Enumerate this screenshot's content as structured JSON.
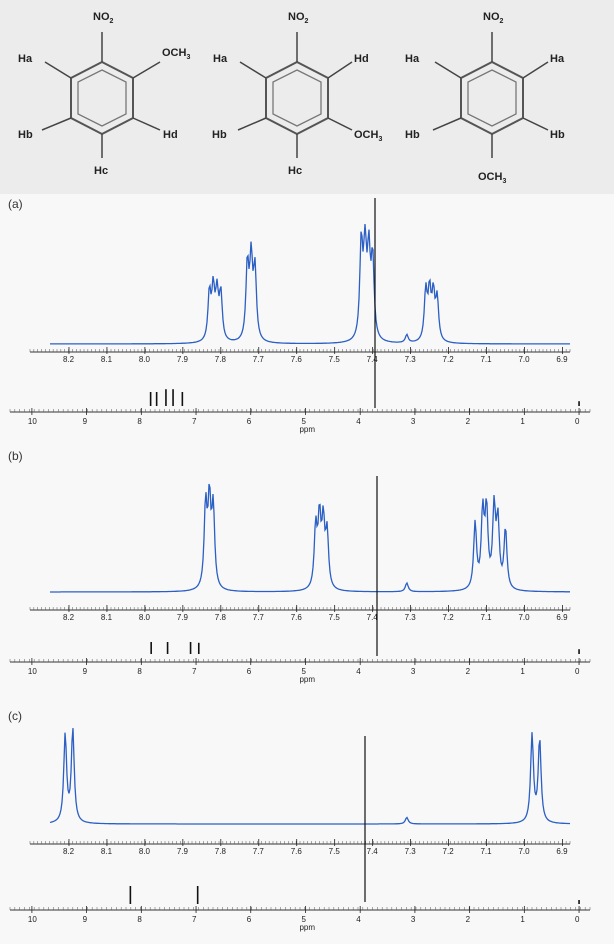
{
  "structures": [
    {
      "top": "NO",
      "top_sub": "2",
      "left_up": "Ha",
      "right_up": "OCH",
      "right_up_sub": "3",
      "left_down": "Hb",
      "right_down": "Hd",
      "bottom": "Hc",
      "bottom_sub": ""
    },
    {
      "top": "NO",
      "top_sub": "2",
      "left_up": "Ha",
      "right_up": "Hd",
      "right_up_sub": "",
      "left_down": "Hb",
      "right_down": "OCH",
      "right_down_sub": "3",
      "bottom": "Hc",
      "bottom_sub": ""
    },
    {
      "top": "NO",
      "top_sub": "2",
      "left_up": "Ha",
      "right_up": "Ha",
      "right_up_sub": "",
      "left_down": "Hb",
      "right_down": "Hb",
      "bottom": "OCH",
      "bottom_sub": "3"
    }
  ],
  "chart_data": [
    {
      "panel": "(a)",
      "type": "line",
      "zoom_axis": {
        "range": [
          8.25,
          6.88
        ],
        "ticks": [
          "8.2",
          "8.1",
          "8.0",
          "7.9",
          "7.8",
          "7.7",
          "7.6",
          "7.5",
          "7.4",
          "7.3",
          "7.2",
          "7.1",
          "7.0",
          "6.9"
        ]
      },
      "zoom_peaks": [
        {
          "ppm": 7.83,
          "height": 0.48
        },
        {
          "ppm": 7.82,
          "height": 0.5
        },
        {
          "ppm": 7.81,
          "height": 0.46
        },
        {
          "ppm": 7.8,
          "height": 0.47
        },
        {
          "ppm": 7.73,
          "height": 0.75
        },
        {
          "ppm": 7.72,
          "height": 0.78
        },
        {
          "ppm": 7.71,
          "height": 0.7
        },
        {
          "ppm": 7.43,
          "height": 0.95
        },
        {
          "ppm": 7.42,
          "height": 0.9
        },
        {
          "ppm": 7.41,
          "height": 0.82
        },
        {
          "ppm": 7.4,
          "height": 0.8
        },
        {
          "ppm": 7.26,
          "height": 0.5
        },
        {
          "ppm": 7.25,
          "height": 0.48
        },
        {
          "ppm": 7.24,
          "height": 0.45
        },
        {
          "ppm": 7.23,
          "height": 0.42
        },
        {
          "ppm": 7.31,
          "height": 0.08
        }
      ],
      "full_axis": {
        "range": [
          10.4,
          -0.2
        ],
        "ticks": [
          "10",
          "9",
          "8",
          "7",
          "6",
          "5",
          "4",
          "3",
          "2",
          "1",
          "0"
        ],
        "xlabel": "ppm"
      },
      "full_peaks": [
        {
          "ppm": 7.83,
          "height": 0.35
        },
        {
          "ppm": 7.72,
          "height": 0.35
        },
        {
          "ppm": 7.55,
          "height": 0.42
        },
        {
          "ppm": 7.42,
          "height": 0.42
        },
        {
          "ppm": 7.25,
          "height": 0.35
        },
        {
          "ppm": 3.9,
          "height": 1.0
        },
        {
          "ppm": 0.0,
          "height": 0.12
        }
      ]
    },
    {
      "panel": "(b)",
      "type": "line",
      "zoom_axis": {
        "range": [
          8.25,
          6.88
        ],
        "ticks": [
          "8.2",
          "8.1",
          "8.0",
          "7.9",
          "7.8",
          "7.7",
          "7.6",
          "7.5",
          "7.4",
          "7.3",
          "7.2",
          "7.1",
          "7.0",
          "6.9"
        ]
      },
      "zoom_peaks": [
        {
          "ppm": 7.84,
          "height": 0.75
        },
        {
          "ppm": 7.83,
          "height": 0.77
        },
        {
          "ppm": 7.82,
          "height": 0.72
        },
        {
          "ppm": 7.55,
          "height": 0.55
        },
        {
          "ppm": 7.54,
          "height": 0.62
        },
        {
          "ppm": 7.53,
          "height": 0.58
        },
        {
          "ppm": 7.52,
          "height": 0.5
        },
        {
          "ppm": 7.31,
          "height": 0.08
        },
        {
          "ppm": 7.13,
          "height": 0.6
        },
        {
          "ppm": 7.11,
          "height": 0.68
        },
        {
          "ppm": 7.1,
          "height": 0.7
        },
        {
          "ppm": 7.08,
          "height": 0.72
        },
        {
          "ppm": 7.07,
          "height": 0.6
        },
        {
          "ppm": 7.05,
          "height": 0.55
        }
      ],
      "full_axis": {
        "range": [
          10.4,
          -0.2
        ],
        "ticks": [
          "10",
          "9",
          "8",
          "7",
          "6",
          "5",
          "4",
          "3",
          "2",
          "1",
          "0"
        ],
        "xlabel": "ppm"
      },
      "full_peaks": [
        {
          "ppm": 7.82,
          "height": 0.3
        },
        {
          "ppm": 7.52,
          "height": 0.3
        },
        {
          "ppm": 7.1,
          "height": 0.3
        },
        {
          "ppm": 6.95,
          "height": 0.28
        },
        {
          "ppm": 3.9,
          "height": 1.0
        },
        {
          "ppm": 0.0,
          "height": 0.12
        }
      ]
    },
    {
      "panel": "(c)",
      "type": "line",
      "zoom_axis": {
        "range": [
          8.25,
          6.88
        ],
        "ticks": [
          "8.2",
          "8.1",
          "8.0",
          "7.9",
          "7.8",
          "7.7",
          "7.6",
          "7.5",
          "7.4",
          "7.3",
          "7.2",
          "7.1",
          "7.0",
          "6.9"
        ]
      },
      "zoom_peaks": [
        {
          "ppm": 8.21,
          "height": 0.8
        },
        {
          "ppm": 8.19,
          "height": 0.85
        },
        {
          "ppm": 7.31,
          "height": 0.06
        },
        {
          "ppm": 6.98,
          "height": 0.8
        },
        {
          "ppm": 6.96,
          "height": 0.76
        }
      ],
      "full_axis": {
        "range": [
          10.4,
          -0.2
        ],
        "ticks": [
          "10",
          "9",
          "8",
          "7",
          "6",
          "5",
          "4",
          "3",
          "2",
          "1",
          "0"
        ],
        "xlabel": "ppm"
      },
      "full_peaks": [
        {
          "ppm": 8.2,
          "height": 0.45
        },
        {
          "ppm": 6.97,
          "height": 0.45
        },
        {
          "ppm": 3.9,
          "height": 1.0
        },
        {
          "ppm": 0.0,
          "height": 0.1
        }
      ]
    }
  ]
}
